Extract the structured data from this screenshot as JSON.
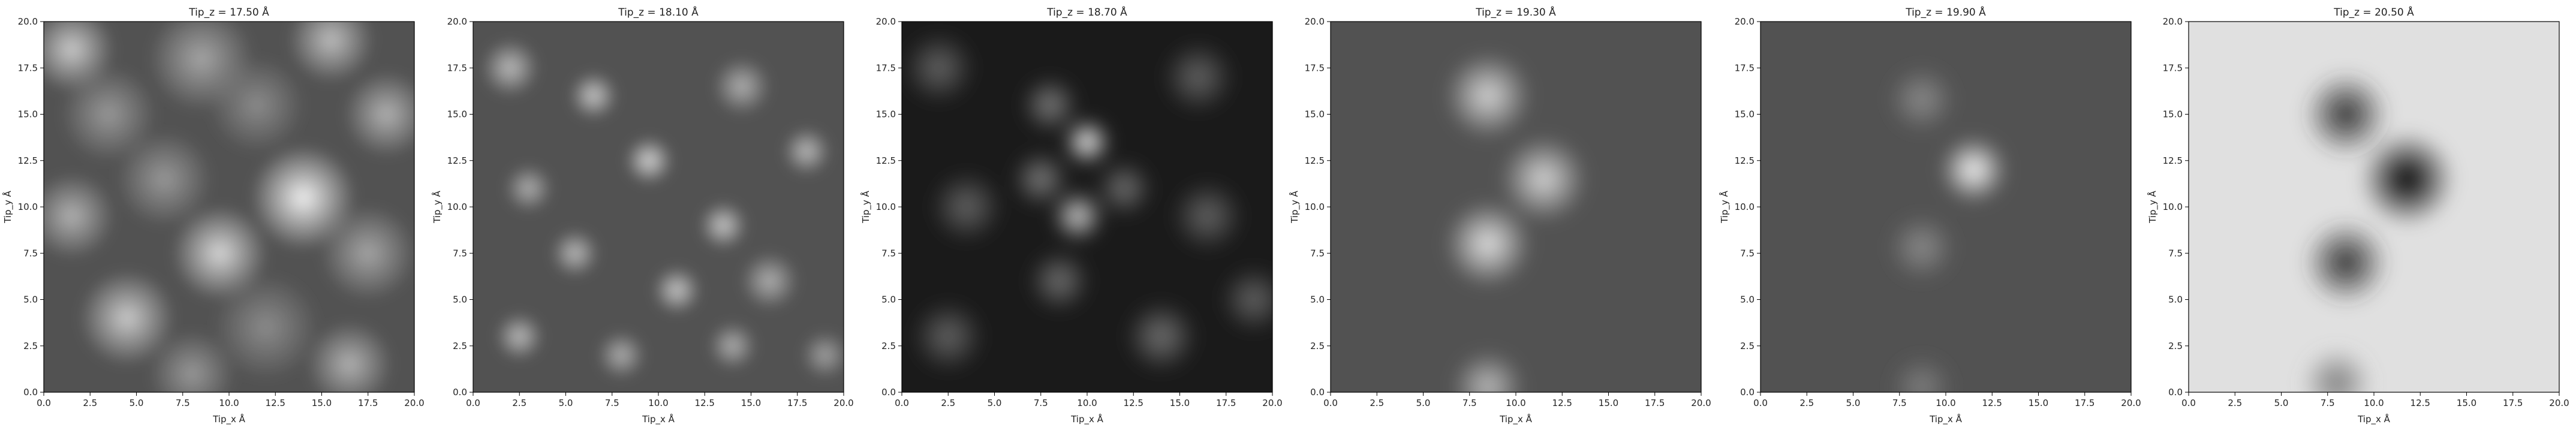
{
  "chart_data": [
    {
      "type": "heatmap",
      "title": "Tip_z = 17.50 Å",
      "xlabel": "Tip_x Å",
      "ylabel": "Tip_y Å",
      "xlim": [
        0.0,
        20.0
      ],
      "ylim": [
        0.0,
        20.0
      ],
      "colormap": "grayscale",
      "grid": false,
      "xticks": [
        "0.0",
        "2.5",
        "5.0",
        "7.5",
        "10.0",
        "12.5",
        "15.0",
        "17.5",
        "20.0"
      ],
      "yticks": [
        "0.0",
        "2.5",
        "5.0",
        "7.5",
        "10.0",
        "12.5",
        "15.0",
        "17.5",
        "20.0"
      ],
      "features": [
        {
          "x": 1.5,
          "y": 18.5,
          "intensity": 0.8,
          "radius": 1.8
        },
        {
          "x": 8.5,
          "y": 18.0,
          "intensity": 0.65,
          "radius": 2.2
        },
        {
          "x": 15.5,
          "y": 19.0,
          "intensity": 0.75,
          "radius": 1.8
        },
        {
          "x": 3.5,
          "y": 15.0,
          "intensity": 0.6,
          "radius": 2.0
        },
        {
          "x": 11.5,
          "y": 15.5,
          "intensity": 0.55,
          "radius": 2.0
        },
        {
          "x": 18.5,
          "y": 15.0,
          "intensity": 0.7,
          "radius": 1.8
        },
        {
          "x": 6.5,
          "y": 11.5,
          "intensity": 0.6,
          "radius": 2.0
        },
        {
          "x": 14.0,
          "y": 10.5,
          "intensity": 0.95,
          "radius": 2.2
        },
        {
          "x": 1.5,
          "y": 9.5,
          "intensity": 0.7,
          "radius": 1.8
        },
        {
          "x": 9.5,
          "y": 7.5,
          "intensity": 0.85,
          "radius": 2.0
        },
        {
          "x": 17.5,
          "y": 7.5,
          "intensity": 0.65,
          "radius": 2.0
        },
        {
          "x": 4.5,
          "y": 4.0,
          "intensity": 0.8,
          "radius": 2.0
        },
        {
          "x": 12.0,
          "y": 3.5,
          "intensity": 0.55,
          "radius": 2.2
        },
        {
          "x": 16.5,
          "y": 1.5,
          "intensity": 0.7,
          "radius": 1.8
        },
        {
          "x": 8.0,
          "y": 1.0,
          "intensity": 0.6,
          "radius": 1.8
        }
      ]
    },
    {
      "type": "heatmap",
      "title": "Tip_z = 18.10 Å",
      "xlabel": "Tip_x Å",
      "ylabel": "Tip_y Å",
      "xlim": [
        0.0,
        20.0
      ],
      "ylim": [
        0.0,
        20.0
      ],
      "colormap": "grayscale",
      "grid": false,
      "xticks": [
        "0.0",
        "2.5",
        "5.0",
        "7.5",
        "10.0",
        "12.5",
        "15.0",
        "17.5",
        "20.0"
      ],
      "yticks": [
        "0.0",
        "2.5",
        "5.0",
        "7.5",
        "10.0",
        "12.5",
        "15.0",
        "17.5",
        "20.0"
      ],
      "features": [
        {
          "x": 2.0,
          "y": 17.5,
          "intensity": 0.75,
          "radius": 1.2
        },
        {
          "x": 6.5,
          "y": 16.0,
          "intensity": 0.8,
          "radius": 1.0
        },
        {
          "x": 14.5,
          "y": 16.5,
          "intensity": 0.7,
          "radius": 1.2
        },
        {
          "x": 18.0,
          "y": 13.0,
          "intensity": 0.75,
          "radius": 1.0
        },
        {
          "x": 3.0,
          "y": 11.0,
          "intensity": 0.7,
          "radius": 1.0
        },
        {
          "x": 9.5,
          "y": 12.5,
          "intensity": 0.85,
          "radius": 1.0
        },
        {
          "x": 13.5,
          "y": 9.0,
          "intensity": 0.8,
          "radius": 1.0
        },
        {
          "x": 5.5,
          "y": 7.5,
          "intensity": 0.75,
          "radius": 1.0
        },
        {
          "x": 11.0,
          "y": 5.5,
          "intensity": 0.8,
          "radius": 1.0
        },
        {
          "x": 16.0,
          "y": 6.0,
          "intensity": 0.7,
          "radius": 1.2
        },
        {
          "x": 2.5,
          "y": 3.0,
          "intensity": 0.75,
          "radius": 1.0
        },
        {
          "x": 8.0,
          "y": 2.0,
          "intensity": 0.7,
          "radius": 1.0
        },
        {
          "x": 14.0,
          "y": 2.5,
          "intensity": 0.7,
          "radius": 1.0
        },
        {
          "x": 19.0,
          "y": 2.0,
          "intensity": 0.65,
          "radius": 1.0
        }
      ]
    },
    {
      "type": "heatmap",
      "title": "Tip_z = 18.70 Å",
      "xlabel": "Tip_x Å",
      "ylabel": "Tip_y Å",
      "xlim": [
        0.0,
        20.0
      ],
      "ylim": [
        0.0,
        20.0
      ],
      "colormap": "grayscale",
      "grid": false,
      "xticks": [
        "0.0",
        "2.5",
        "5.0",
        "7.5",
        "10.0",
        "12.5",
        "15.0",
        "17.5",
        "20.0"
      ],
      "yticks": [
        "0.0",
        "2.5",
        "5.0",
        "7.5",
        "10.0",
        "12.5",
        "15.0",
        "17.5",
        "20.0"
      ],
      "features": [
        {
          "x": 10.0,
          "y": 13.5,
          "intensity": 1.0,
          "radius": 1.0
        },
        {
          "x": 9.5,
          "y": 9.5,
          "intensity": 0.85,
          "radius": 1.1
        },
        {
          "x": 8.0,
          "y": 15.5,
          "intensity": 0.5,
          "radius": 1.2
        },
        {
          "x": 7.5,
          "y": 11.5,
          "intensity": 0.5,
          "radius": 1.2
        },
        {
          "x": 12.0,
          "y": 11.0,
          "intensity": 0.45,
          "radius": 1.2
        },
        {
          "x": 8.5,
          "y": 6.0,
          "intensity": 0.45,
          "radius": 1.3
        },
        {
          "x": 2.0,
          "y": 17.5,
          "intensity": 0.4,
          "radius": 1.5
        },
        {
          "x": 16.0,
          "y": 17.0,
          "intensity": 0.4,
          "radius": 1.5
        },
        {
          "x": 3.5,
          "y": 10.0,
          "intensity": 0.4,
          "radius": 1.5
        },
        {
          "x": 16.5,
          "y": 9.5,
          "intensity": 0.4,
          "radius": 1.5
        },
        {
          "x": 2.5,
          "y": 3.0,
          "intensity": 0.4,
          "radius": 1.5
        },
        {
          "x": 14.0,
          "y": 3.0,
          "intensity": 0.45,
          "radius": 1.5
        },
        {
          "x": 19.0,
          "y": 5.0,
          "intensity": 0.4,
          "radius": 1.4
        }
      ]
    },
    {
      "type": "heatmap",
      "title": "Tip_z = 19.30 Å",
      "xlabel": "Tip_x Å",
      "ylabel": "Tip_y Å",
      "xlim": [
        0.0,
        20.0
      ],
      "ylim": [
        0.0,
        20.0
      ],
      "colormap": "grayscale",
      "grid": false,
      "xticks": [
        "0.0",
        "2.5",
        "5.0",
        "7.5",
        "10.0",
        "12.5",
        "15.0",
        "17.5",
        "20.0"
      ],
      "yticks": [
        "0.0",
        "2.5",
        "5.0",
        "7.5",
        "10.0",
        "12.5",
        "15.0",
        "17.5",
        "20.0"
      ],
      "features": [
        {
          "x": 8.5,
          "y": 16.0,
          "intensity": 0.85,
          "radius": 1.8
        },
        {
          "x": 11.5,
          "y": 11.5,
          "intensity": 0.85,
          "radius": 1.8
        },
        {
          "x": 8.5,
          "y": 8.0,
          "intensity": 0.9,
          "radius": 1.8
        },
        {
          "x": 8.5,
          "y": 0.3,
          "intensity": 0.75,
          "radius": 1.5
        }
      ]
    },
    {
      "type": "heatmap",
      "title": "Tip_z = 19.90 Å",
      "xlabel": "Tip_x Å",
      "ylabel": "Tip_y Å",
      "xlim": [
        0.0,
        20.0
      ],
      "ylim": [
        0.0,
        20.0
      ],
      "colormap": "grayscale",
      "grid": false,
      "xticks": [
        "0.0",
        "2.5",
        "5.0",
        "7.5",
        "10.0",
        "12.5",
        "15.0",
        "17.5",
        "20.0"
      ],
      "yticks": [
        "0.0",
        "2.5",
        "5.0",
        "7.5",
        "10.0",
        "12.5",
        "15.0",
        "17.5",
        "20.0"
      ],
      "features": [
        {
          "x": 8.7,
          "y": 15.8,
          "intensity": 0.55,
          "radius": 1.4
        },
        {
          "x": 11.5,
          "y": 12.0,
          "intensity": 1.0,
          "radius": 1.4
        },
        {
          "x": 8.7,
          "y": 7.8,
          "intensity": 0.55,
          "radius": 1.4
        },
        {
          "x": 8.7,
          "y": 0.3,
          "intensity": 0.5,
          "radius": 1.3
        }
      ]
    },
    {
      "type": "heatmap",
      "title": "Tip_z = 20.50 Å",
      "xlabel": "Tip_x Å",
      "ylabel": "Tip_y Å",
      "xlim": [
        0.0,
        20.0
      ],
      "ylim": [
        0.0,
        20.0
      ],
      "colormap": "grayscale",
      "grid": false,
      "xticks": [
        "0.0",
        "2.5",
        "5.0",
        "7.5",
        "10.0",
        "12.5",
        "15.0",
        "17.5",
        "20.0"
      ],
      "yticks": [
        "0.0",
        "2.5",
        "5.0",
        "7.5",
        "10.0",
        "12.5",
        "15.0",
        "17.5",
        "20.0"
      ],
      "features": [
        {
          "x": 8.5,
          "y": 15.0,
          "intensity": 0.2,
          "radius": 1.8
        },
        {
          "x": 11.8,
          "y": 11.5,
          "intensity": 0.0,
          "radius": 2.0
        },
        {
          "x": 8.5,
          "y": 7.0,
          "intensity": 0.2,
          "radius": 1.8
        },
        {
          "x": 8.0,
          "y": 0.5,
          "intensity": 0.5,
          "radius": 1.5
        }
      ]
    }
  ]
}
